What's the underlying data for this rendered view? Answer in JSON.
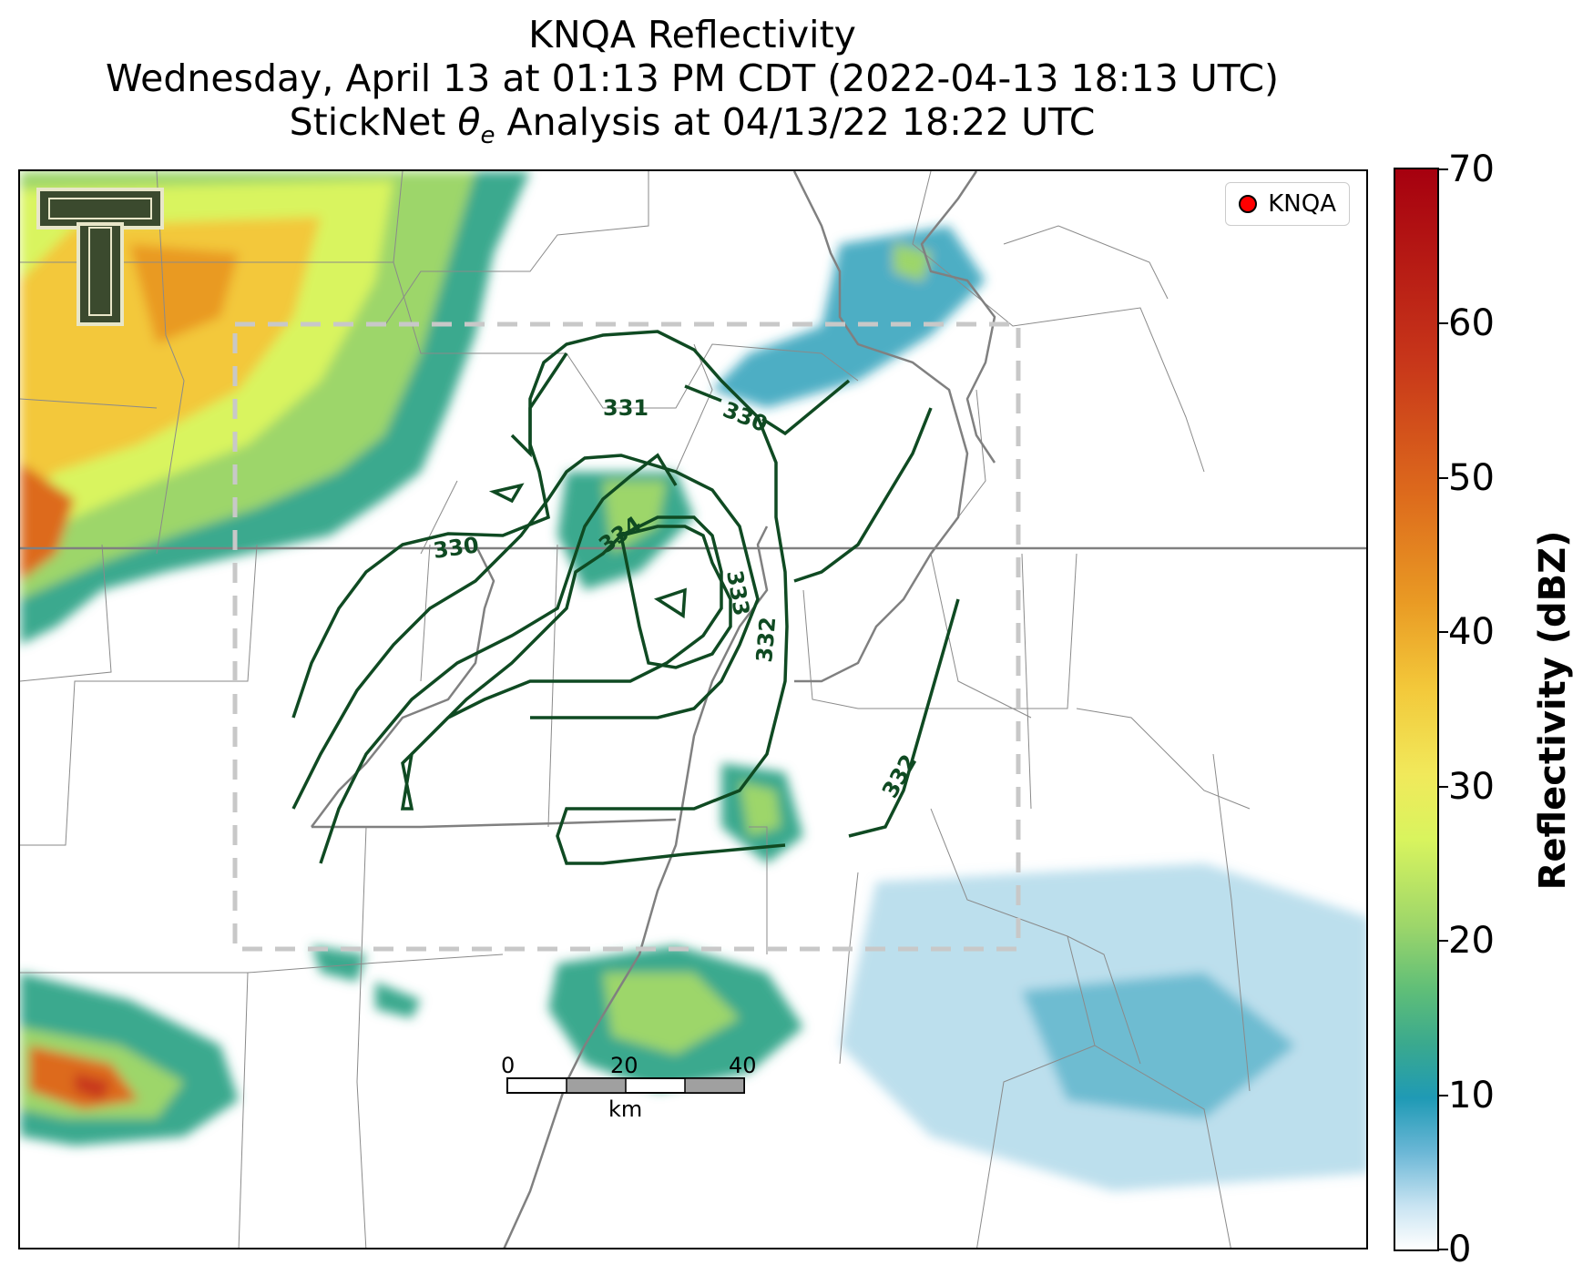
{
  "title": {
    "line1": "KNQA Reflectivity",
    "line2": "Wednesday, April 13 at 01:13 PM CDT (2022-04-13 18:13 UTC)",
    "line3_prefix": "StickNet ",
    "line3_symbol": "θ",
    "line3_sub": "e",
    "line3_suffix": " Analysis at 04/13/22 18:22 UTC"
  },
  "legend": {
    "label": "KNQA",
    "marker_color": "#ff0000"
  },
  "colorbar": {
    "label": "Reflectivity (dBZ)",
    "ticks": [
      "0",
      "10",
      "20",
      "30",
      "40",
      "50",
      "60",
      "70"
    ],
    "range": [
      0,
      70
    ]
  },
  "contours": {
    "color": "#0f4a22",
    "labels": [
      "330",
      "331",
      "330",
      "334",
      "333",
      "332",
      "332"
    ]
  },
  "scale_bar": {
    "labels": [
      "0",
      "20",
      "40"
    ],
    "unit": "km"
  },
  "logo": {
    "name": "Texas Tech double-T logo"
  }
}
